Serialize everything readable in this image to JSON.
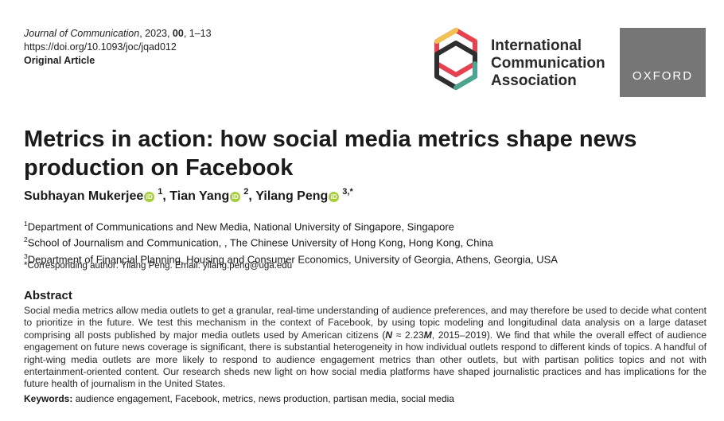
{
  "journal": {
    "name": "Journal of Communication",
    "year_part": ", 2023, ",
    "volume": "00",
    "pages": ", 1–13",
    "doi": "https://doi.org/10.1093/joc/jqad012",
    "article_type": "Original Article"
  },
  "publisher": {
    "ica_line1": "International",
    "ica_line2": "Communication",
    "ica_line3": "Association",
    "oxford_label": "OXFORD",
    "oxford_color": "#767676"
  },
  "title": "Metrics in action: how social media metrics shape news production on Facebook",
  "authors": [
    {
      "name": "Subhayan Mukerjee",
      "sup": "1",
      "sep": ", "
    },
    {
      "name": "Tian Yang",
      "sup": "2",
      "sep": ", "
    },
    {
      "name": "Yilang Peng",
      "sup": "3,*",
      "sep": ""
    }
  ],
  "orcid_icon": "orcid-icon",
  "affiliations": [
    {
      "num": "1",
      "text": "Department of Communications and New Media, National University of Singapore, Singapore"
    },
    {
      "num": "2",
      "text": "School of Journalism and Communication, , The Chinese University of Hong Kong, Hong Kong, China"
    },
    {
      "num": "3",
      "text": "Department of Financial Planning, Housing and Consumer Economics, University of Georgia, Athens, Georgia, USA"
    }
  ],
  "corresponding": "*Corresponding author: Yilang Peng. Email: yilang.peng@uga.edu",
  "abstract": {
    "heading": "Abstract",
    "part1": "Social media metrics allow media outlets to get a granular, real-time understanding of audience preferences, and may therefore be used to decide what content to prioritize in the future. We test this mechanism in the context of Facebook, by using topic modeling and longitudinal data analysis on a large dataset comprising all posts published by major media outlets used by American citizens (",
    "n_symbol": "N",
    "approx": " ≈ 2.23",
    "m_symbol": "M",
    "part2": ", 2015–2019). We find that while the overall effect of audience engagement on future news coverage is significant, there is substantial heterogeneity in how individual outlets respond to different kinds of topics. A handful of right-wing media outlets are more likely to respond to audience engagement metrics than other outlets, but with partisan politics topics and not with entertainment-oriented content. Our research sheds new light on how social media platforms have shaped journalistic practices and has implications for the future health of journalism in the United States."
  },
  "keywords": {
    "label": "Keywords:",
    "text": " audience engagement, Facebook, metrics, news production, partisan media, social media"
  },
  "colors": {
    "ica_red": "#e8404e",
    "ica_yellow": "#f2c14e",
    "ica_teal": "#4aa68f",
    "ica_dark": "#2e2e2e",
    "orcid_green": "#a6ce39"
  }
}
